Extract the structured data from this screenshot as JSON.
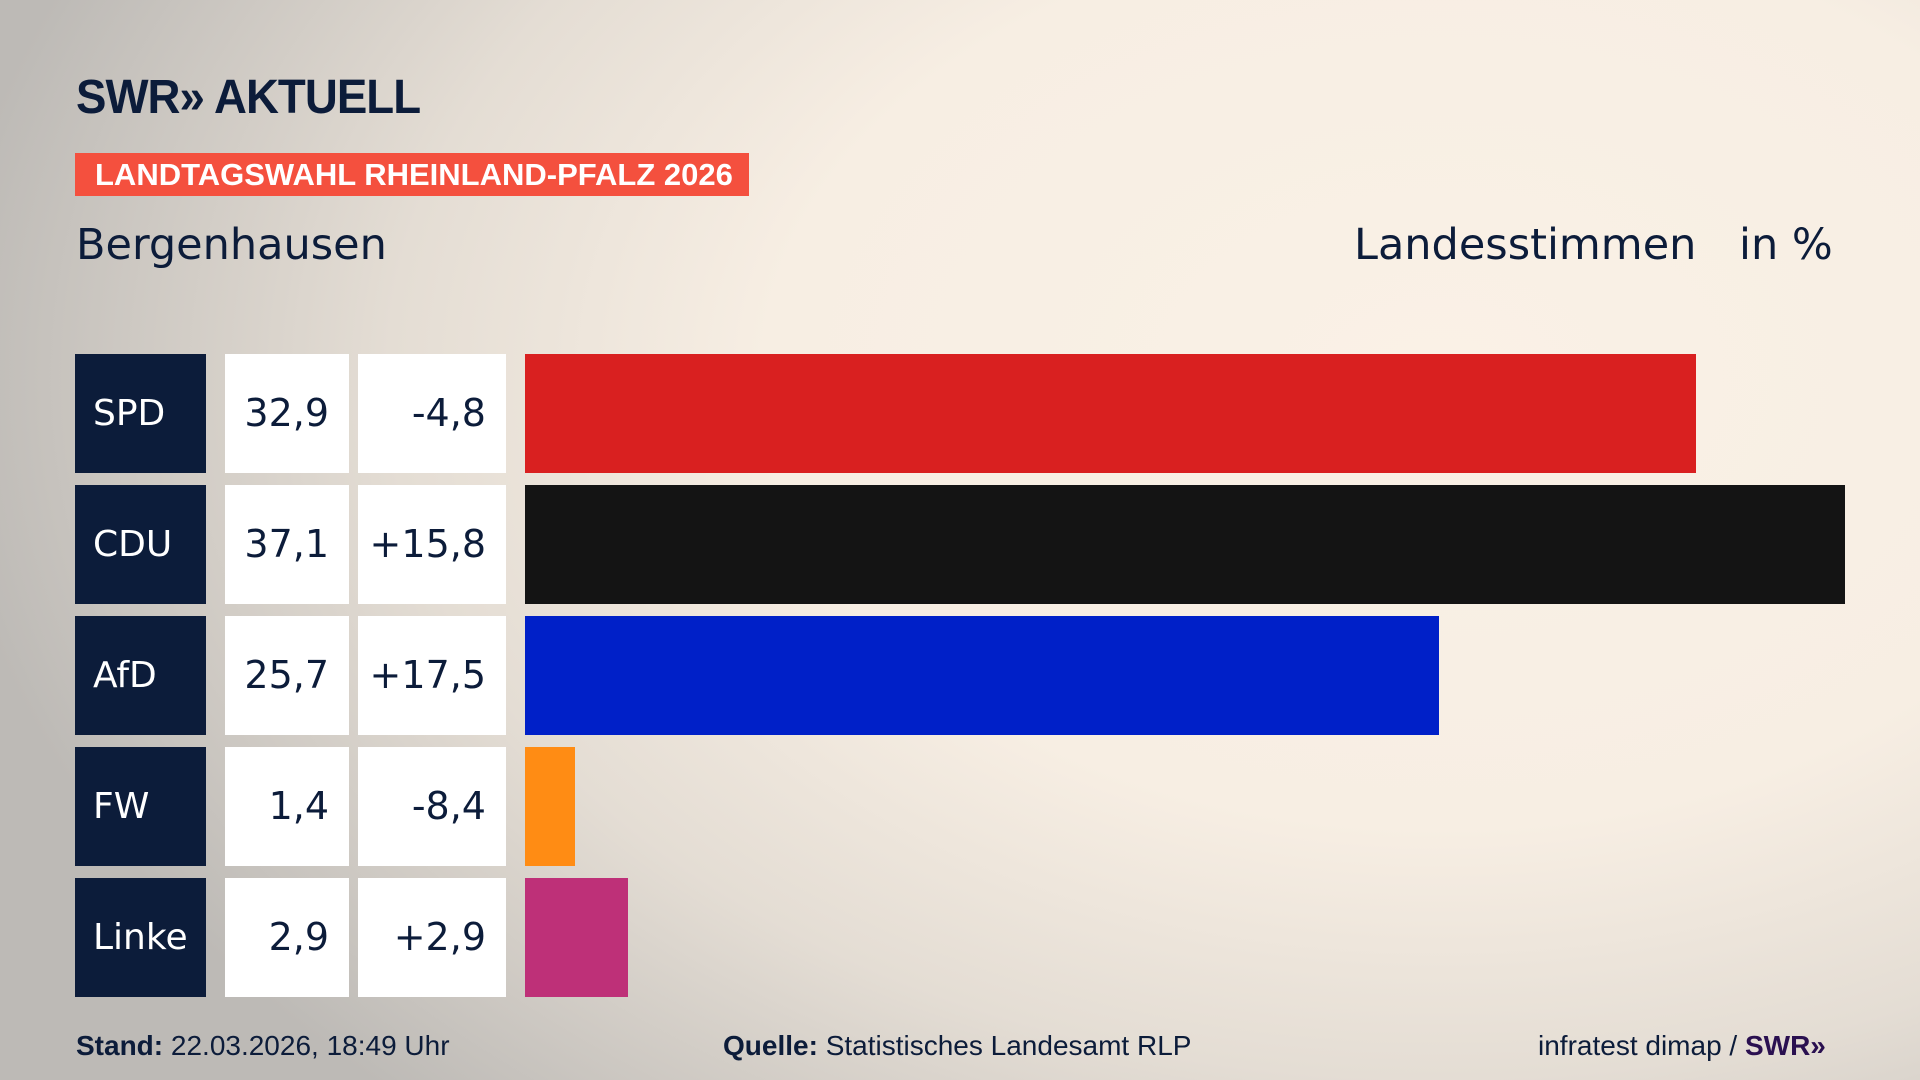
{
  "header": {
    "logo": "SWR» AKTUELL",
    "badge": "LANDTAGSWAHL RHEINLAND-PFALZ 2026",
    "place": "Bergenhausen",
    "metric": "Landesstimmen",
    "unit": "in %"
  },
  "chart_data": {
    "type": "bar",
    "orientation": "horizontal",
    "categories": [
      "SPD",
      "CDU",
      "AfD",
      "FW",
      "Linke"
    ],
    "values": [
      32.9,
      37.1,
      25.7,
      1.4,
      2.9
    ],
    "value_labels": [
      "32,9",
      "37,1",
      "25,7",
      "1,4",
      "2,9"
    ],
    "changes": [
      "-4,8",
      "+15,8",
      "+17,5",
      "-8,4",
      "+2,9"
    ],
    "colors": [
      "#d92020",
      "#141414",
      "#0020c8",
      "#ff8c14",
      "#be3078"
    ],
    "title": "Landesstimmen",
    "ylabel": "in %"
  },
  "footer": {
    "stand_label": "Stand:",
    "stand_value": "22.03.2026, 18:49 Uhr",
    "source_label": "Quelle:",
    "source_value": "Statistisches Landesamt RLP",
    "credit": "infratest dimap /",
    "credit_brand": "SWR»"
  }
}
